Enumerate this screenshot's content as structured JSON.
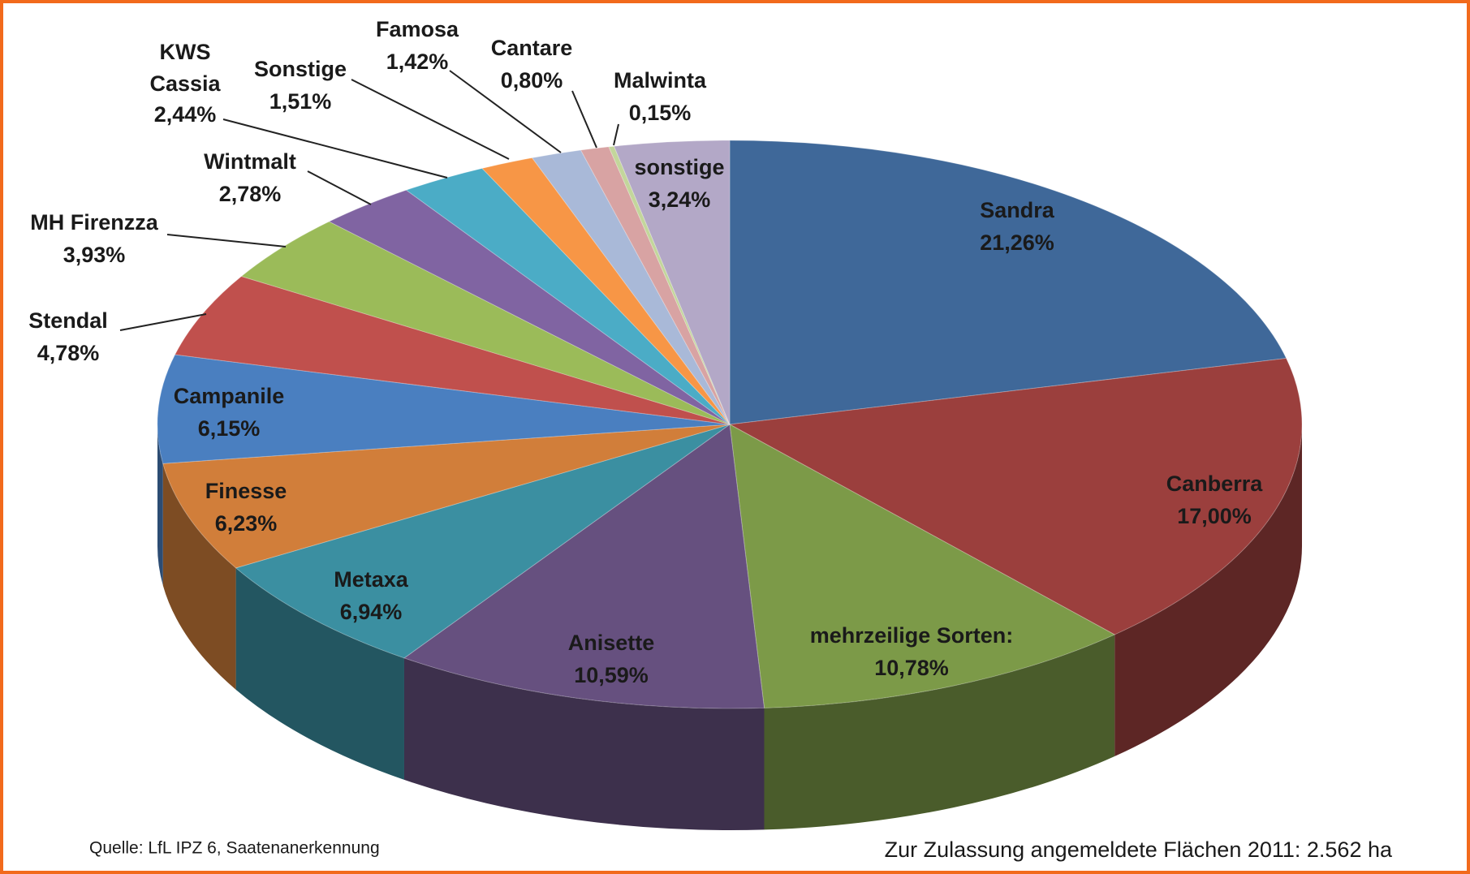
{
  "chart_data": {
    "type": "pie",
    "categories": [
      "Sandra",
      "Canberra",
      "mehrzeilige Sorten:",
      "Anisette",
      "Metaxa",
      "Finesse",
      "Campanile",
      "Stendal",
      "MH Firenzza",
      "Wintmalt",
      "KWS Cassia",
      "Sonstige",
      "Famosa",
      "Cantare",
      "Malwinta",
      "sonstige"
    ],
    "values": [
      21.26,
      17.0,
      10.78,
      10.59,
      6.94,
      6.23,
      6.15,
      4.78,
      3.93,
      2.78,
      2.44,
      1.51,
      1.42,
      0.8,
      0.15,
      3.24
    ],
    "value_labels": [
      "21,26%",
      "17,00%",
      "10,78%",
      "10,59%",
      "6,94%",
      "6,23%",
      "6,15%",
      "4,78%",
      "3,93%",
      "2,78%",
      "2,44%",
      "1,51%",
      "1,42%",
      "0,80%",
      "0,15%",
      "3,24%"
    ],
    "colors": [
      "#3f6899",
      "#9b3f3d",
      "#7c9a48",
      "#66507f",
      "#3b8fa1",
      "#d17e3a",
      "#4a7fc0",
      "#c0504d",
      "#9bbb59",
      "#8064a2",
      "#4bacc6",
      "#f79646",
      "#a9b9d8",
      "#d8a3a3",
      "#c3d69b",
      "#b3a8c7"
    ],
    "source": "Quelle: LfL IPZ 6, Saatenanerkennung",
    "note": "Zur Zulassung angemeldete Flächen 2011: 2.562 ha"
  }
}
